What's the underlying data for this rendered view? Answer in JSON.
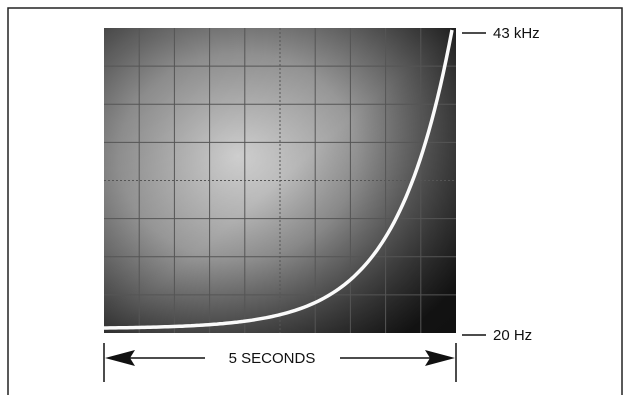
{
  "labels": {
    "top": "43 kHz",
    "bottom": "20 Hz",
    "span": "5 SECONDS"
  }
}
